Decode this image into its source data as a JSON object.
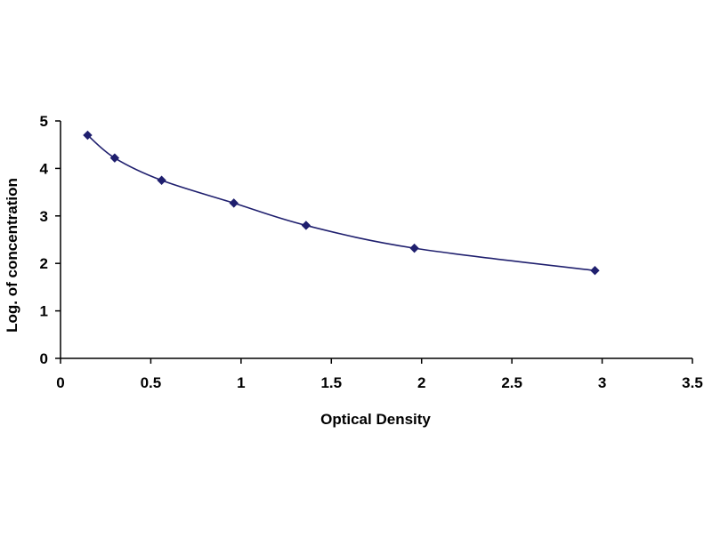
{
  "chart_data": {
    "type": "scatter",
    "title": "",
    "xlabel": "Optical Density",
    "ylabel": "Log. of concentration",
    "xlim": [
      0,
      3.5
    ],
    "ylim": [
      0,
      5
    ],
    "x_ticks": [
      "0",
      "0.5",
      "1",
      "1.5",
      "2",
      "2.5",
      "3",
      "3.5"
    ],
    "y_ticks": [
      "0",
      "1",
      "2",
      "3",
      "4",
      "5"
    ],
    "grid": false,
    "legend": "none",
    "series": [
      {
        "marker": "diamond",
        "line": "smooth",
        "color": "#1f1f6e",
        "points": [
          {
            "x": 0.15,
            "y": 4.7
          },
          {
            "x": 0.3,
            "y": 4.22
          },
          {
            "x": 0.56,
            "y": 3.75
          },
          {
            "x": 0.96,
            "y": 3.27
          },
          {
            "x": 1.36,
            "y": 2.8
          },
          {
            "x": 1.96,
            "y": 2.32
          },
          {
            "x": 2.96,
            "y": 1.85
          }
        ]
      }
    ]
  }
}
